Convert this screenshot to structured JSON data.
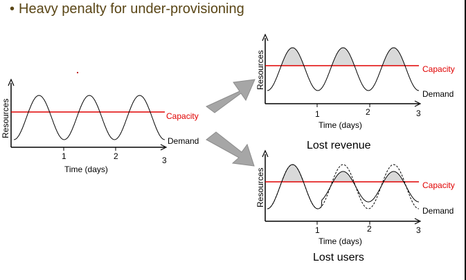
{
  "slide": {
    "bullet": "•",
    "title": "Heavy penalty for under-provisioning"
  },
  "charts": {
    "left": {
      "ylabel": "Resources",
      "xlabel": "Time (days)",
      "ticks": [
        "1",
        "2",
        "3"
      ],
      "capacity_label": "Capacity",
      "demand_label": "Demand"
    },
    "top_right": {
      "ylabel": "Resources",
      "xlabel": "Time (days)",
      "ticks": [
        "1",
        "2",
        "3"
      ],
      "capacity_label": "Capacity",
      "demand_label": "Demand",
      "caption": "Lost revenue"
    },
    "bottom_right": {
      "ylabel": "Resources",
      "xlabel": "Time (days)",
      "ticks": [
        "1",
        "2",
        "3"
      ],
      "capacity_label": "Capacity",
      "demand_label": "Demand",
      "caption": "Lost users"
    }
  },
  "colors": {
    "capacity": "#e00000",
    "demand": "#000000",
    "shade": "#d9d9d9",
    "arrow": "#a6a6a6",
    "title": "#5a4616"
  }
}
